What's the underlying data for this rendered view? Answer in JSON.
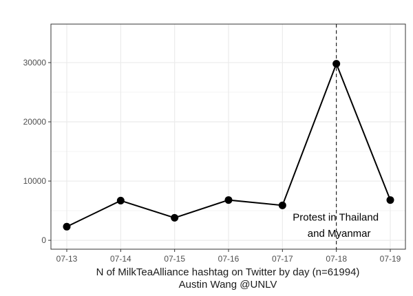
{
  "chart_data": {
    "type": "line",
    "x": [
      "07-13",
      "07-14",
      "07-15",
      "07-16",
      "07-17",
      "07-18",
      "07-19"
    ],
    "values": [
      2300,
      6700,
      3800,
      6800,
      5900,
      29800,
      6800
    ],
    "ylim": [
      -1500,
      36500
    ],
    "yticks": [
      0,
      10000,
      20000,
      30000
    ],
    "ytick_labels": [
      "0",
      "10000",
      "20000",
      "30000"
    ],
    "grid": true,
    "xlabel_line1": "N of MilkTeaAlliance hashtag on Twitter by day (n=61994)",
    "xlabel_line2": "Austin Wang @UNLV",
    "vline": {
      "x": "07-18",
      "label_line1": "Protest in Thailand",
      "label_line2": "and Myanmar"
    },
    "colors": {
      "line": "#000000",
      "grid": "#ebebeb",
      "panel_border": "#333333"
    }
  }
}
